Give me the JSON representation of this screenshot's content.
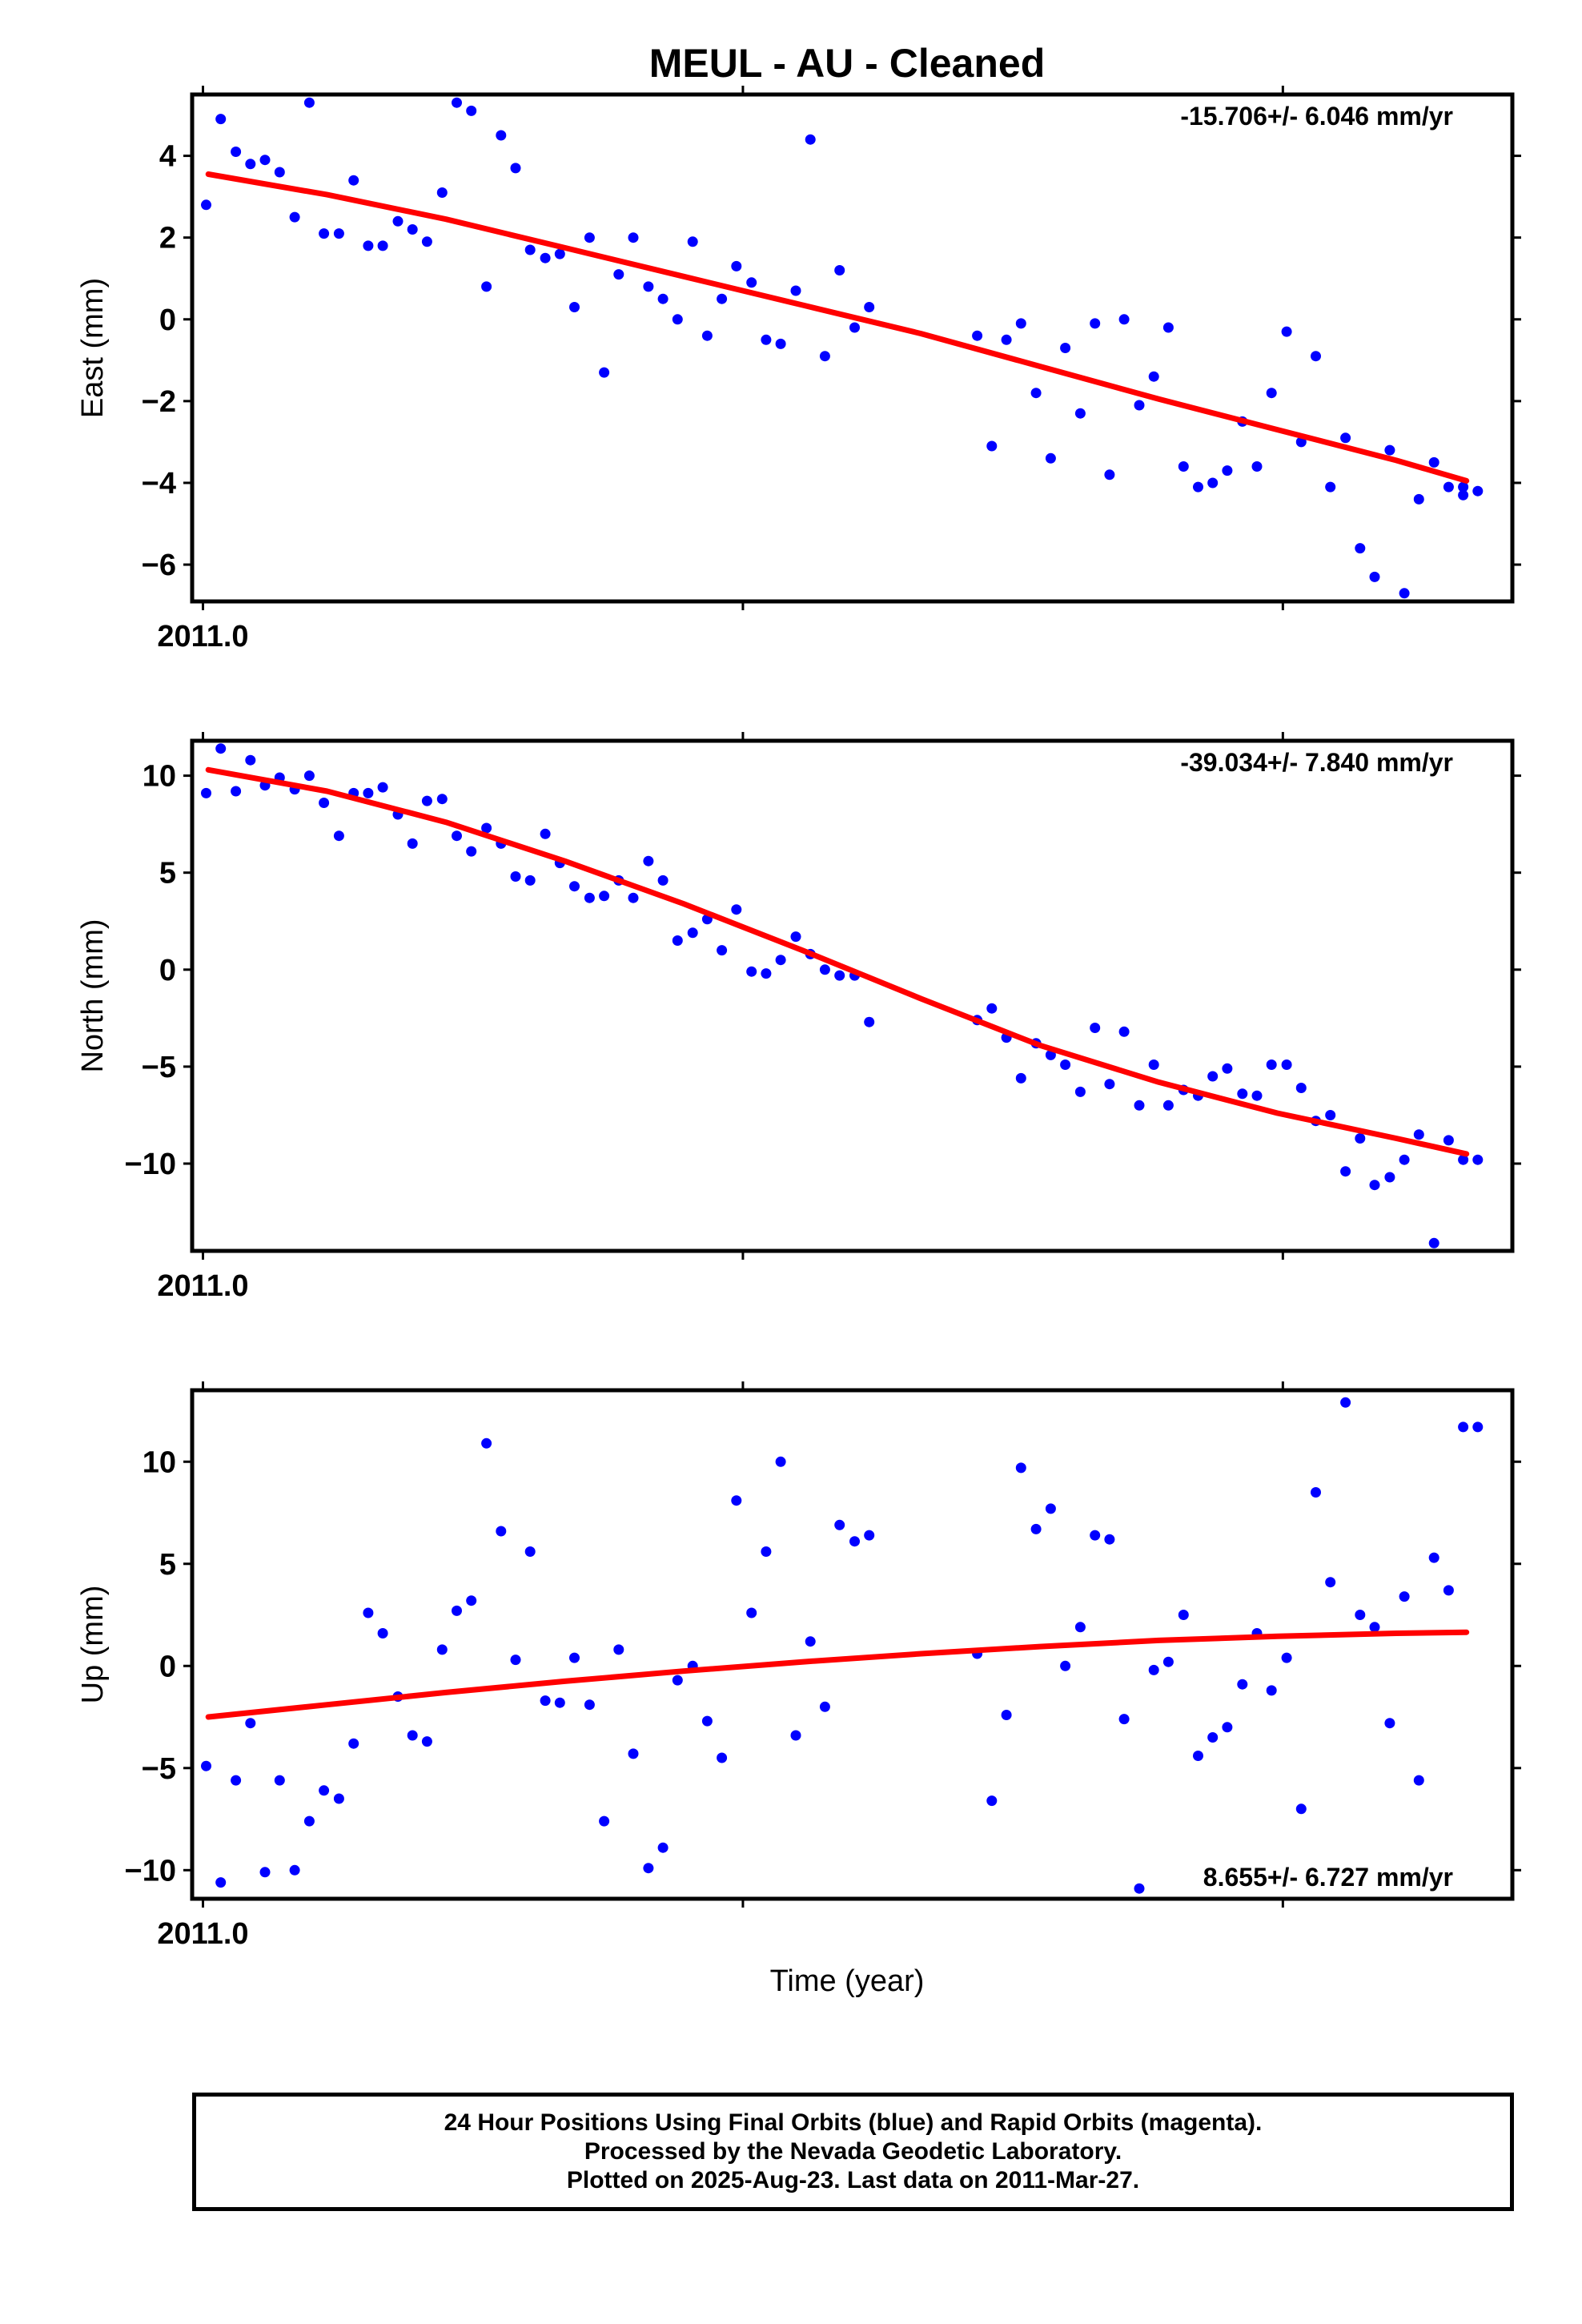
{
  "title": "MEUL  - AU - Cleaned",
  "x_axis_label": "Time (year)",
  "footer": {
    "line1": "24 Hour Positions Using Final Orbits (blue) and Rapid Orbits (magenta).",
    "line2": "Processed by the Nevada Geodetic Laboratory.",
    "line3": "Plotted on 2025-Aug-23. Last data on 2011-Mar-27."
  },
  "colors": {
    "final_orbit_points": "#0000ff",
    "trend_line": "#ff0000",
    "frame": "#000000"
  },
  "chart_data": [
    {
      "type": "scatter",
      "ylabel": "East (mm)",
      "rate_label": "-15.706+/- 6.046 mm/yr",
      "rate_position": "top-right",
      "xlim": [
        2010.998,
        2011.2425
      ],
      "xtick_label": "2011.0",
      "xtick_label_value": 2011.0,
      "xtick_marks": [
        2011.0,
        2011.1,
        2011.2
      ],
      "ylim": [
        -6.9,
        5.5
      ],
      "yticks": [
        -6,
        -4,
        -2,
        0,
        2,
        4
      ],
      "ytick_labels": [
        "−6",
        "−4",
        "−2",
        "0",
        "2",
        "4"
      ],
      "series": [
        {
          "style": "points",
          "color": "#0000ff",
          "x": [
            2011.0006,
            2011.0033,
            2011.0061,
            2011.0088,
            2011.0115,
            2011.0142,
            2011.017,
            2011.0197,
            2011.0224,
            2011.0252,
            2011.0279,
            2011.0306,
            2011.0333,
            2011.0361,
            2011.0388,
            2011.0415,
            2011.0443,
            2011.047,
            2011.0497,
            2011.0525,
            2011.0552,
            2011.0579,
            2011.0606,
            2011.0634,
            2011.0661,
            2011.0688,
            2011.0716,
            2011.0743,
            2011.077,
            2011.0797,
            2011.0825,
            2011.0852,
            2011.0879,
            2011.0907,
            2011.0934,
            2011.0961,
            2011.0988,
            2011.1016,
            2011.1043,
            2011.107,
            2011.1098,
            2011.1125,
            2011.1152,
            2011.1179,
            2011.1207,
            2011.1234,
            2011.1434,
            2011.1461,
            2011.1488,
            2011.1515,
            2011.1543,
            2011.157,
            2011.1597,
            2011.1625,
            2011.1652,
            2011.1679,
            2011.1706,
            2011.1734,
            2011.1761,
            2011.1788,
            2011.1816,
            2011.1843,
            2011.187,
            2011.1897,
            2011.1925,
            2011.1952,
            2011.1979,
            2011.2007,
            2011.2034,
            2011.2061,
            2011.2088,
            2011.2116,
            2011.2143,
            2011.217,
            2011.2198,
            2011.2225,
            2011.2252,
            2011.228,
            2011.2307,
            2011.2334,
            2011.2334,
            2011.2361
          ],
          "y": [
            2.8,
            4.9,
            4.1,
            3.8,
            3.9,
            3.6,
            2.5,
            5.3,
            2.1,
            2.1,
            3.4,
            1.8,
            1.8,
            2.4,
            2.2,
            1.9,
            3.1,
            5.3,
            5.1,
            0.8,
            4.5,
            3.7,
            1.7,
            1.5,
            1.6,
            0.3,
            2.0,
            -1.3,
            1.1,
            2.0,
            0.8,
            0.5,
            0.0,
            1.9,
            -0.4,
            0.5,
            1.3,
            0.9,
            -0.5,
            -0.6,
            0.7,
            4.4,
            -0.9,
            1.2,
            -0.2,
            0.3,
            -0.4,
            -3.1,
            -0.5,
            -0.1,
            -1.8,
            -3.4,
            -0.7,
            -2.3,
            -0.1,
            -3.8,
            0.0,
            -2.1,
            -1.4,
            -0.2,
            -3.6,
            -4.1,
            -4.0,
            -3.7,
            -2.5,
            -3.6,
            -1.8,
            -0.3,
            -3.0,
            -0.9,
            -4.1,
            -2.9,
            -5.6,
            -6.3,
            -3.2,
            -6.7,
            -4.4,
            -3.5,
            -4.1,
            -4.3,
            -4.1,
            -4.2
          ]
        },
        {
          "style": "line",
          "color": "#ff0000",
          "x": [
            2011.001,
            2011.023,
            2011.045,
            2011.067,
            2011.089,
            2011.111,
            2011.133,
            2011.155,
            2011.177,
            2011.199,
            2011.221,
            2011.234
          ],
          "y": [
            3.55,
            3.05,
            2.45,
            1.75,
            1.05,
            0.35,
            -0.35,
            -1.15,
            -1.95,
            -2.7,
            -3.45,
            -3.95
          ]
        }
      ]
    },
    {
      "type": "scatter",
      "ylabel": "North (mm)",
      "rate_label": "-39.034+/- 7.840 mm/yr",
      "rate_position": "top-right",
      "xlim": [
        2010.998,
        2011.2425
      ],
      "xtick_label": "2011.0",
      "xtick_label_value": 2011.0,
      "xtick_marks": [
        2011.0,
        2011.1,
        2011.2
      ],
      "ylim": [
        -14.5,
        11.8
      ],
      "yticks": [
        -10,
        -5,
        0,
        5,
        10
      ],
      "ytick_labels": [
        "−10",
        "−5",
        "0",
        "5",
        "10"
      ],
      "series": [
        {
          "style": "points",
          "color": "#0000ff",
          "x": [
            2011.0006,
            2011.0033,
            2011.0061,
            2011.0088,
            2011.0115,
            2011.0142,
            2011.017,
            2011.0197,
            2011.0224,
            2011.0252,
            2011.0279,
            2011.0306,
            2011.0333,
            2011.0361,
            2011.0388,
            2011.0415,
            2011.0443,
            2011.047,
            2011.0497,
            2011.0525,
            2011.0552,
            2011.0579,
            2011.0606,
            2011.0634,
            2011.0661,
            2011.0688,
            2011.0716,
            2011.0743,
            2011.077,
            2011.0797,
            2011.0825,
            2011.0852,
            2011.0879,
            2011.0907,
            2011.0934,
            2011.0961,
            2011.0988,
            2011.1016,
            2011.1043,
            2011.107,
            2011.1098,
            2011.1125,
            2011.1152,
            2011.1179,
            2011.1207,
            2011.1234,
            2011.1434,
            2011.1461,
            2011.1488,
            2011.1515,
            2011.1543,
            2011.157,
            2011.1597,
            2011.1625,
            2011.1652,
            2011.1679,
            2011.1706,
            2011.1734,
            2011.1761,
            2011.1788,
            2011.1816,
            2011.1843,
            2011.187,
            2011.1897,
            2011.1925,
            2011.1952,
            2011.1979,
            2011.2007,
            2011.2034,
            2011.2061,
            2011.2088,
            2011.2116,
            2011.2143,
            2011.217,
            2011.2198,
            2011.2225,
            2011.2252,
            2011.228,
            2011.2307,
            2011.2334,
            2011.2361
          ],
          "y": [
            9.1,
            11.4,
            9.2,
            10.8,
            9.5,
            9.9,
            9.3,
            10.0,
            8.6,
            6.9,
            9.1,
            9.1,
            9.4,
            8.0,
            6.5,
            8.7,
            8.8,
            6.9,
            6.1,
            7.3,
            6.5,
            4.8,
            4.6,
            7.0,
            5.5,
            4.3,
            3.7,
            3.8,
            4.6,
            3.7,
            5.6,
            4.6,
            1.5,
            1.9,
            2.6,
            1.0,
            3.1,
            -0.1,
            -0.2,
            0.5,
            1.7,
            0.8,
            0.0,
            -0.3,
            -0.3,
            -2.7,
            -2.6,
            -2.0,
            -3.5,
            -5.6,
            -3.8,
            -4.4,
            -4.9,
            -6.3,
            -3.0,
            -5.9,
            -3.2,
            -7.0,
            -4.9,
            -7.0,
            -6.2,
            -6.5,
            -5.5,
            -5.1,
            -6.4,
            -6.5,
            -4.9,
            -4.9,
            -6.1,
            -7.8,
            -7.5,
            -10.4,
            -8.7,
            -11.1,
            -10.7,
            -9.8,
            -8.5,
            -14.1,
            -8.8,
            -9.8,
            -9.8
          ]
        },
        {
          "style": "line",
          "color": "#ff0000",
          "x": [
            2011.001,
            2011.023,
            2011.045,
            2011.067,
            2011.089,
            2011.111,
            2011.133,
            2011.155,
            2011.177,
            2011.199,
            2011.221,
            2011.234
          ],
          "y": [
            10.3,
            9.2,
            7.6,
            5.6,
            3.4,
            1.0,
            -1.5,
            -3.9,
            -5.8,
            -7.4,
            -8.7,
            -9.5
          ]
        }
      ]
    },
    {
      "type": "scatter",
      "ylabel": "Up (mm)",
      "rate_label": "8.655+/- 6.727 mm/yr",
      "rate_position": "bottom-right",
      "xlim": [
        2010.998,
        2011.2425
      ],
      "xtick_label": "2011.0",
      "xtick_label_value": 2011.0,
      "xtick_marks": [
        2011.0,
        2011.1,
        2011.2
      ],
      "ylim": [
        -11.4,
        13.5
      ],
      "yticks": [
        -10,
        -5,
        0,
        5,
        10
      ],
      "ytick_labels": [
        "−10",
        "−5",
        "0",
        "5",
        "10"
      ],
      "series": [
        {
          "style": "points",
          "color": "#0000ff",
          "x": [
            2011.0006,
            2011.0033,
            2011.0061,
            2011.0088,
            2011.0115,
            2011.0142,
            2011.017,
            2011.0197,
            2011.0224,
            2011.0252,
            2011.0279,
            2011.0306,
            2011.0333,
            2011.0361,
            2011.0388,
            2011.0415,
            2011.0443,
            2011.047,
            2011.0497,
            2011.0525,
            2011.0552,
            2011.0579,
            2011.0606,
            2011.0634,
            2011.0661,
            2011.0688,
            2011.0716,
            2011.0743,
            2011.077,
            2011.0797,
            2011.0825,
            2011.0852,
            2011.0879,
            2011.0907,
            2011.0934,
            2011.0961,
            2011.0988,
            2011.1016,
            2011.1043,
            2011.107,
            2011.1098,
            2011.1125,
            2011.1152,
            2011.1179,
            2011.1207,
            2011.1234,
            2011.1434,
            2011.1461,
            2011.1488,
            2011.1515,
            2011.1543,
            2011.157,
            2011.1597,
            2011.1625,
            2011.1652,
            2011.1679,
            2011.1706,
            2011.1734,
            2011.1761,
            2011.1788,
            2011.1816,
            2011.1843,
            2011.187,
            2011.1897,
            2011.1925,
            2011.1952,
            2011.1979,
            2011.2007,
            2011.2034,
            2011.2061,
            2011.2088,
            2011.2116,
            2011.2143,
            2011.217,
            2011.2198,
            2011.2225,
            2011.2252,
            2011.228,
            2011.2307,
            2011.2334,
            2011.2361
          ],
          "y": [
            -4.9,
            -10.6,
            -5.6,
            -2.8,
            -10.1,
            -5.6,
            -10.0,
            -7.6,
            -6.1,
            -6.5,
            -3.8,
            2.6,
            1.6,
            -1.5,
            -3.4,
            -3.7,
            0.8,
            2.7,
            3.2,
            10.9,
            6.6,
            0.3,
            5.6,
            -1.7,
            -1.8,
            0.4,
            -1.9,
            -7.6,
            0.8,
            -4.3,
            -9.9,
            -8.9,
            -0.7,
            0.0,
            -2.7,
            -4.5,
            8.1,
            2.6,
            5.6,
            10.0,
            -3.4,
            1.2,
            -2.0,
            6.9,
            6.1,
            6.4,
            0.6,
            -6.6,
            -2.4,
            9.7,
            6.7,
            7.7,
            0.0,
            1.9,
            6.4,
            6.2,
            -2.6,
            -10.9,
            -0.2,
            0.2,
            2.5,
            -4.4,
            -3.5,
            -3.0,
            -0.9,
            1.6,
            -1.2,
            0.4,
            -7.0,
            8.5,
            4.1,
            12.9,
            2.5,
            1.9,
            -2.8,
            3.4,
            -5.6,
            5.3,
            3.7,
            11.7,
            11.7
          ]
        },
        {
          "style": "line",
          "color": "#ff0000",
          "x": [
            2011.001,
            2011.023,
            2011.045,
            2011.067,
            2011.089,
            2011.111,
            2011.133,
            2011.155,
            2011.177,
            2011.199,
            2011.221,
            2011.234
          ],
          "y": [
            -2.5,
            -1.9,
            -1.3,
            -0.75,
            -0.25,
            0.2,
            0.6,
            0.95,
            1.25,
            1.45,
            1.6,
            1.65
          ]
        }
      ]
    }
  ]
}
